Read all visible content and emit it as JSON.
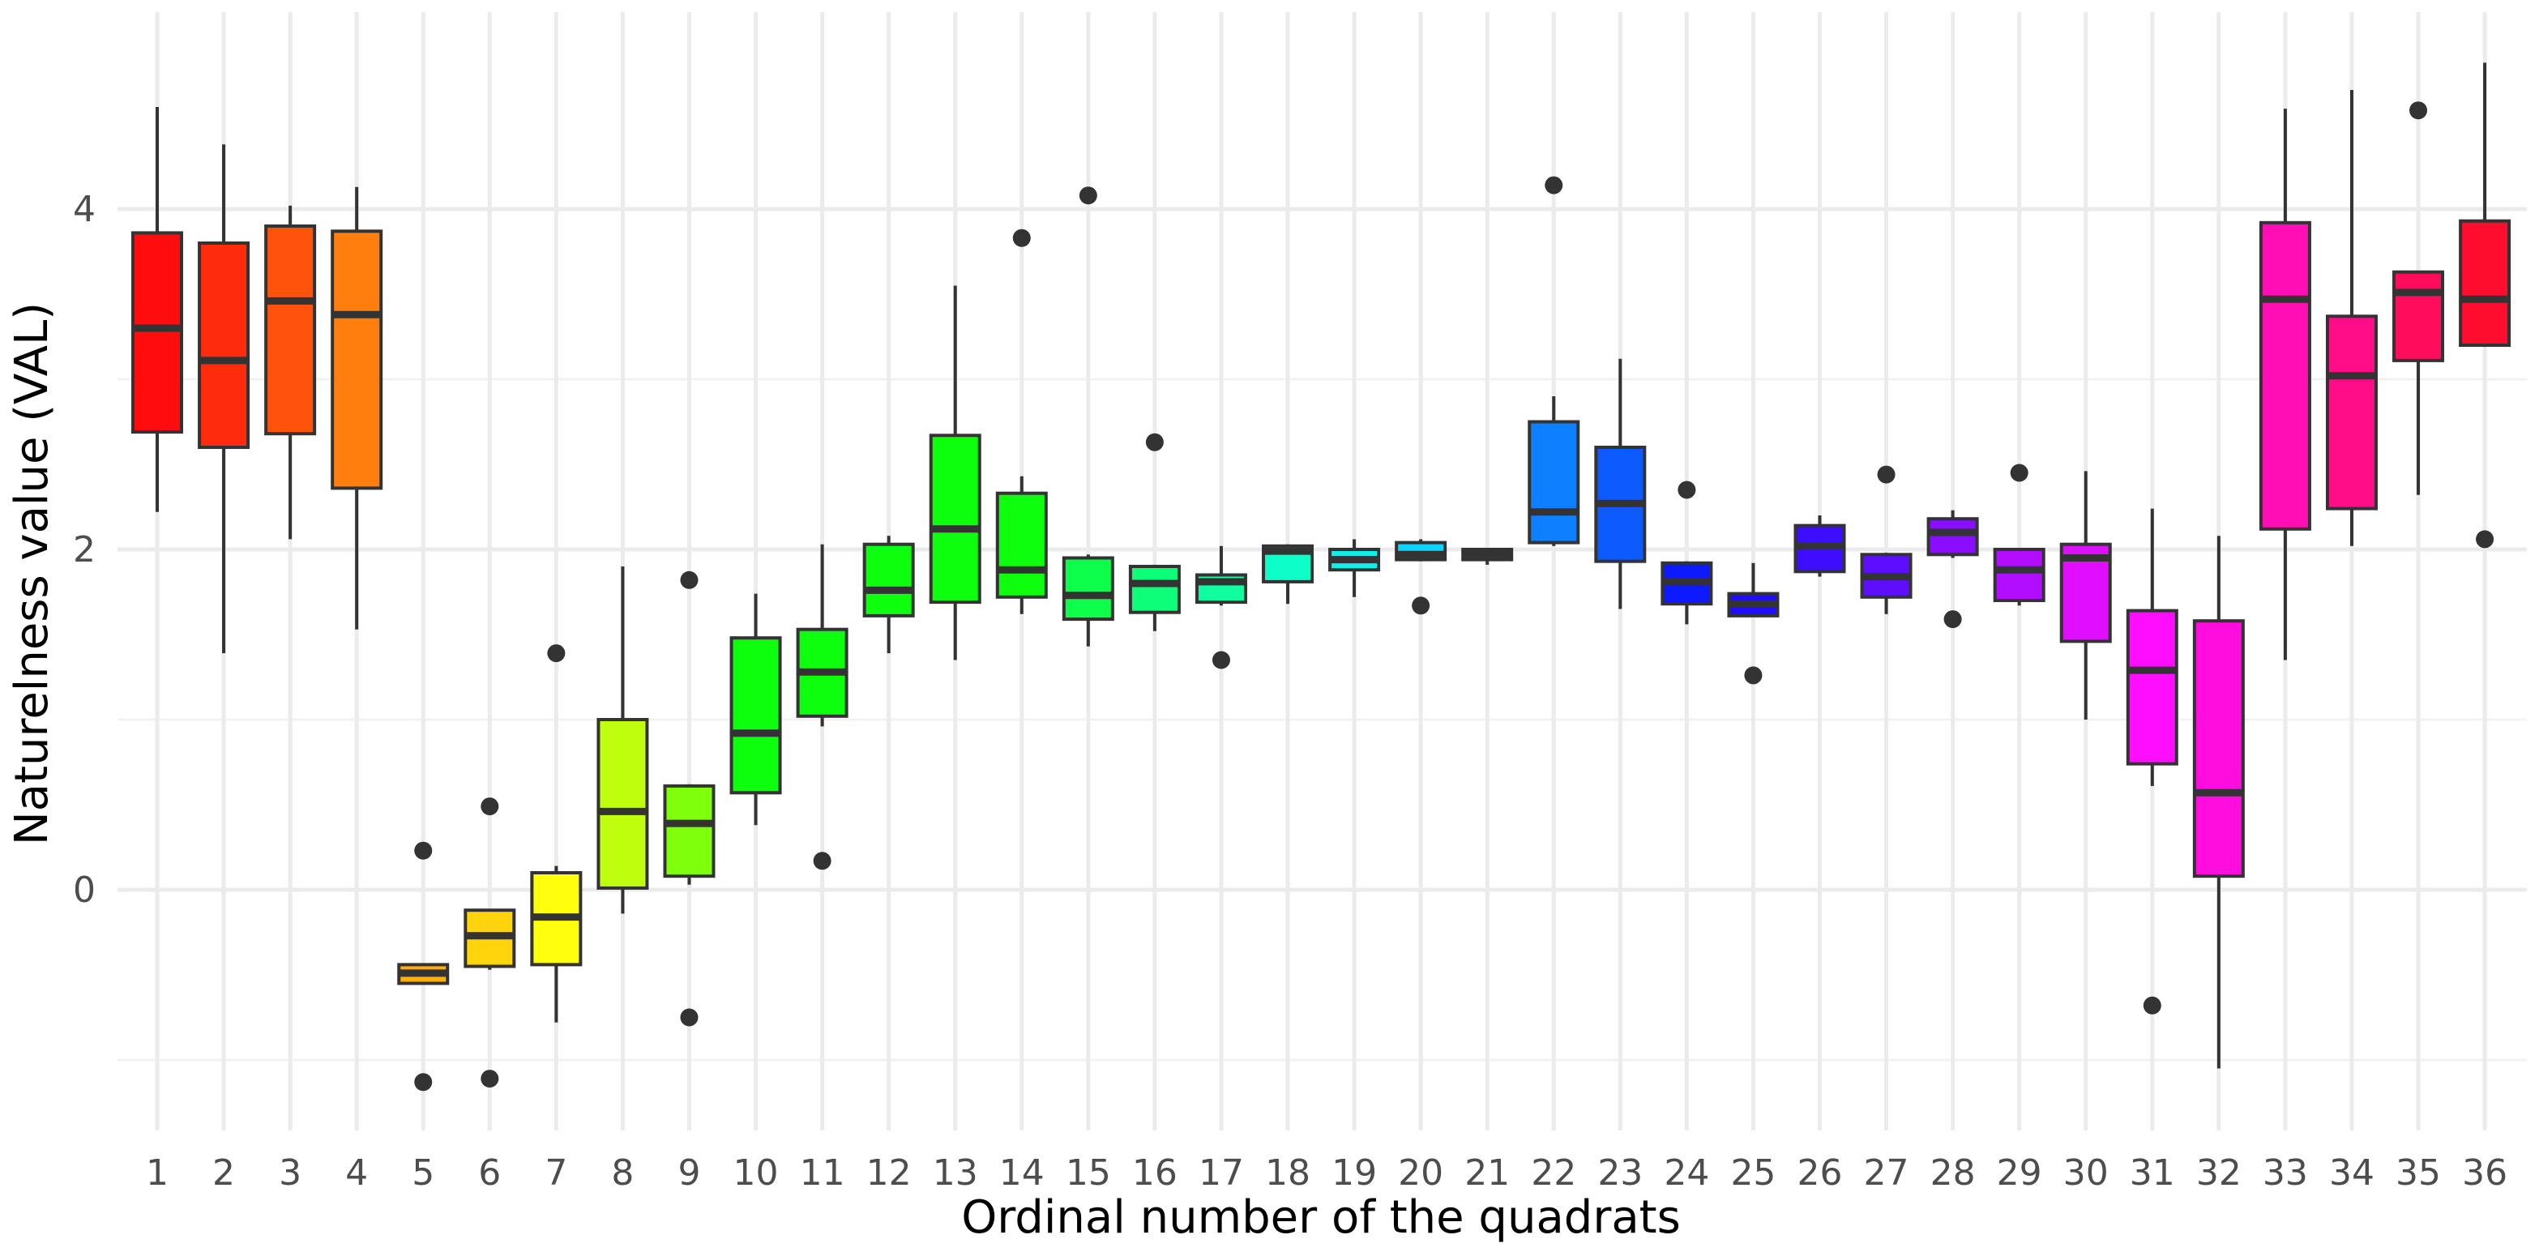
{
  "chart_data": {
    "type": "boxplot",
    "xlabel": "Ordinal number of the quadrats",
    "ylabel": "Naturelness value (VAL)",
    "ylim": [
      -1.45,
      5.1
    ],
    "y_ticks": [
      0,
      2,
      4
    ],
    "grid": true,
    "legend": "none",
    "categories": [
      "1",
      "2",
      "3",
      "4",
      "5",
      "6",
      "7",
      "8",
      "9",
      "10",
      "11",
      "12",
      "13",
      "14",
      "15",
      "16",
      "17",
      "18",
      "19",
      "20",
      "21",
      "22",
      "23",
      "24",
      "25",
      "26",
      "27",
      "28",
      "29",
      "30",
      "31",
      "32",
      "33",
      "34",
      "35",
      "36"
    ],
    "boxes": [
      {
        "q": "1",
        "min": 2.22,
        "q1": 2.69,
        "median": 3.3,
        "q3": 3.86,
        "max": 4.6,
        "outliers": [],
        "color": "#ff0d0d"
      },
      {
        "q": "2",
        "min": 1.39,
        "q1": 2.6,
        "median": 3.11,
        "q3": 3.8,
        "max": 4.38,
        "outliers": [],
        "color": "#ff2b0d"
      },
      {
        "q": "3",
        "min": 2.06,
        "q1": 2.68,
        "median": 3.46,
        "q3": 3.9,
        "max": 4.02,
        "outliers": [],
        "color": "#ff530d"
      },
      {
        "q": "4",
        "min": 1.53,
        "q1": 2.36,
        "median": 3.38,
        "q3": 3.87,
        "max": 4.13,
        "outliers": [],
        "color": "#ff7e0d"
      },
      {
        "q": "5",
        "min": -0.55,
        "q1": -0.55,
        "median": -0.49,
        "q3": -0.44,
        "max": -0.44,
        "outliers": [
          0.23,
          -1.13
        ],
        "color": "#ffae0d"
      },
      {
        "q": "6",
        "min": -0.47,
        "q1": -0.45,
        "median": -0.27,
        "q3": -0.12,
        "max": -0.12,
        "outliers": [
          0.49,
          -1.11
        ],
        "color": "#ffd40d"
      },
      {
        "q": "7",
        "min": -0.78,
        "q1": -0.44,
        "median": -0.16,
        "q3": 0.1,
        "max": 0.14,
        "outliers": [
          1.39
        ],
        "color": "#ffff0d"
      },
      {
        "q": "8",
        "min": -0.14,
        "q1": 0.01,
        "median": 0.46,
        "q3": 1.0,
        "max": 1.9,
        "outliers": [],
        "color": "#bfff0d"
      },
      {
        "q": "9",
        "min": 0.03,
        "q1": 0.08,
        "median": 0.39,
        "q3": 0.61,
        "max": 0.62,
        "outliers": [
          1.82,
          -0.75
        ],
        "color": "#80ff0d"
      },
      {
        "q": "10",
        "min": 0.38,
        "q1": 0.57,
        "median": 0.92,
        "q3": 1.48,
        "max": 1.74,
        "outliers": [],
        "color": "#0dff0d"
      },
      {
        "q": "11",
        "min": 0.96,
        "q1": 1.02,
        "median": 1.28,
        "q3": 1.53,
        "max": 2.03,
        "outliers": [
          0.17
        ],
        "color": "#0dff0d"
      },
      {
        "q": "12",
        "min": 1.39,
        "q1": 1.61,
        "median": 1.76,
        "q3": 2.03,
        "max": 2.08,
        "outliers": [],
        "color": "#0dff0d"
      },
      {
        "q": "13",
        "min": 1.35,
        "q1": 1.69,
        "median": 2.12,
        "q3": 2.67,
        "max": 3.55,
        "outliers": [],
        "color": "#0dff0d"
      },
      {
        "q": "14",
        "min": 1.62,
        "q1": 1.72,
        "median": 1.88,
        "q3": 2.33,
        "max": 2.43,
        "outliers": [
          3.83
        ],
        "color": "#0dff0d"
      },
      {
        "q": "15",
        "min": 1.43,
        "q1": 1.59,
        "median": 1.73,
        "q3": 1.95,
        "max": 1.97,
        "outliers": [
          4.08
        ],
        "color": "#0dff4a"
      },
      {
        "q": "16",
        "min": 1.52,
        "q1": 1.63,
        "median": 1.8,
        "q3": 1.9,
        "max": 1.91,
        "outliers": [
          2.63
        ],
        "color": "#0dff7a"
      },
      {
        "q": "17",
        "min": 1.67,
        "q1": 1.69,
        "median": 1.81,
        "q3": 1.85,
        "max": 2.02,
        "outliers": [
          1.35
        ],
        "color": "#0dffa0"
      },
      {
        "q": "18",
        "min": 1.68,
        "q1": 1.81,
        "median": 1.99,
        "q3": 2.02,
        "max": 2.03,
        "outliers": [],
        "color": "#0dffc7"
      },
      {
        "q": "19",
        "min": 1.72,
        "q1": 1.88,
        "median": 1.94,
        "q3": 2.0,
        "max": 2.06,
        "outliers": [],
        "color": "#0df0e8"
      },
      {
        "q": "20",
        "min": 1.93,
        "q1": 1.94,
        "median": 1.97,
        "q3": 2.04,
        "max": 2.06,
        "outliers": [
          1.67
        ],
        "color": "#0dd4ff"
      },
      {
        "q": "21",
        "min": 1.91,
        "q1": 1.94,
        "median": 1.97,
        "q3": 2.0,
        "max": 2.0,
        "outliers": [],
        "color": "#0da8ff"
      },
      {
        "q": "22",
        "min": 2.02,
        "q1": 2.04,
        "median": 2.22,
        "q3": 2.75,
        "max": 2.9,
        "outliers": [
          4.14
        ],
        "color": "#0d80ff"
      },
      {
        "q": "23",
        "min": 1.65,
        "q1": 1.93,
        "median": 2.27,
        "q3": 2.6,
        "max": 3.12,
        "outliers": [],
        "color": "#0d5aff"
      },
      {
        "q": "24",
        "min": 1.56,
        "q1": 1.68,
        "median": 1.81,
        "q3": 1.92,
        "max": 1.93,
        "outliers": [
          2.35
        ],
        "color": "#0d1aff"
      },
      {
        "q": "25",
        "min": 1.61,
        "q1": 1.61,
        "median": 1.68,
        "q3": 1.74,
        "max": 1.92,
        "outliers": [
          1.26
        ],
        "color": "#1f0dff"
      },
      {
        "q": "26",
        "min": 1.84,
        "q1": 1.87,
        "median": 2.02,
        "q3": 2.14,
        "max": 2.2,
        "outliers": [],
        "color": "#3c0dff"
      },
      {
        "q": "27",
        "min": 1.62,
        "q1": 1.72,
        "median": 1.84,
        "q3": 1.97,
        "max": 1.98,
        "outliers": [
          2.44
        ],
        "color": "#5e0dff"
      },
      {
        "q": "28",
        "min": 1.95,
        "q1": 1.97,
        "median": 2.1,
        "q3": 2.18,
        "max": 2.23,
        "outliers": [
          1.59
        ],
        "color": "#8a0dff"
      },
      {
        "q": "29",
        "min": 1.67,
        "q1": 1.7,
        "median": 1.88,
        "q3": 2.0,
        "max": 2.0,
        "outliers": [
          2.45
        ],
        "color": "#b30dff"
      },
      {
        "q": "30",
        "min": 1.0,
        "q1": 1.46,
        "median": 1.95,
        "q3": 2.03,
        "max": 2.46,
        "outliers": [],
        "color": "#e00dff"
      },
      {
        "q": "31",
        "min": 0.61,
        "q1": 0.74,
        "median": 1.29,
        "q3": 1.64,
        "max": 2.24,
        "outliers": [
          -0.68
        ],
        "color": "#ff0dff"
      },
      {
        "q": "32",
        "min": -1.05,
        "q1": 0.08,
        "median": 0.57,
        "q3": 1.58,
        "max": 2.08,
        "outliers": [],
        "color": "#ff0ddf"
      },
      {
        "q": "33",
        "min": 1.35,
        "q1": 2.12,
        "median": 3.47,
        "q3": 3.92,
        "max": 4.59,
        "outliers": [],
        "color": "#ff0db5"
      },
      {
        "q": "34",
        "min": 2.02,
        "q1": 2.24,
        "median": 3.02,
        "q3": 3.37,
        "max": 4.7,
        "outliers": [],
        "color": "#ff0d88"
      },
      {
        "q": "35",
        "min": 2.32,
        "q1": 3.11,
        "median": 3.51,
        "q3": 3.63,
        "max": 3.63,
        "outliers": [
          4.58
        ],
        "color": "#ff0d5c"
      },
      {
        "q": "36",
        "min": 3.19,
        "q1": 3.2,
        "median": 3.47,
        "q3": 3.93,
        "max": 4.86,
        "outliers": [
          2.06
        ],
        "color": "#ff0d2e"
      }
    ]
  }
}
